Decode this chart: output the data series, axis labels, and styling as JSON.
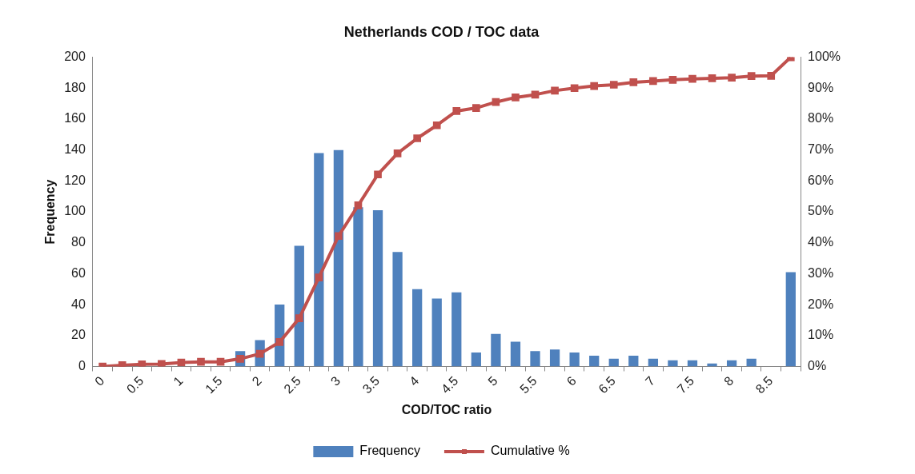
{
  "chart_data": {
    "type": "bar",
    "title": "Netherlands COD / TOC data",
    "xlabel": "COD/TOC ratio",
    "ylabel": "Frequency",
    "categories": [
      "0",
      null,
      "0.5",
      null,
      "1",
      null,
      "1.5",
      null,
      "2",
      null,
      "2.5",
      null,
      "3",
      null,
      "3.5",
      null,
      "4",
      null,
      "4.5",
      null,
      "5",
      null,
      "5.5",
      null,
      "6",
      null,
      "6.5",
      null,
      "7",
      null,
      "7.5",
      null,
      "8",
      null,
      "8.5",
      null
    ],
    "series": [
      {
        "name": "Frequency",
        "color": "#4f81bd",
        "values": [
          null,
          null,
          null,
          null,
          null,
          null,
          null,
          10,
          17,
          40,
          78,
          138,
          140,
          103,
          101,
          74,
          50,
          44,
          48,
          9,
          21,
          16,
          10,
          11,
          9,
          7,
          5,
          7,
          5,
          4,
          4,
          2,
          4,
          5,
          0,
          61
        ]
      },
      {
        "name": "Cumulative %",
        "type": "line",
        "axis": "y2",
        "color": "#c0504d",
        "values": [
          0,
          0.4,
          0.7,
          0.8,
          1.3,
          1.5,
          1.5,
          2.5,
          4.1,
          7.9,
          15.6,
          28.8,
          42.2,
          52.1,
          62.1,
          68.9,
          73.8,
          78.0,
          82.6,
          83.6,
          85.5,
          87.0,
          87.9,
          89.2,
          90.0,
          90.7,
          91.1,
          91.9,
          92.3,
          92.7,
          93.0,
          93.2,
          93.4,
          93.9,
          94.0,
          100
        ]
      }
    ],
    "ylim": [
      0,
      200
    ],
    "yticks": [
      0,
      20,
      40,
      60,
      80,
      100,
      120,
      140,
      160,
      180,
      200
    ],
    "y2lim": [
      0,
      100
    ],
    "y2ticks": [
      {
        "value": 0,
        "label": "0%"
      },
      {
        "value": 10,
        "label": "10%"
      },
      {
        "value": 20,
        "label": "20%"
      },
      {
        "value": 30,
        "label": "30%"
      },
      {
        "value": 40,
        "label": "40%"
      },
      {
        "value": 50,
        "label": "50%"
      },
      {
        "value": 60,
        "label": "60%"
      },
      {
        "value": 70,
        "label": "70%"
      },
      {
        "value": 80,
        "label": "80%"
      },
      {
        "value": 90,
        "label": "90%"
      },
      {
        "value": 100,
        "label": "100%"
      }
    ],
    "grid": false,
    "legend": "bottom",
    "marker": "square",
    "line_style": "solid"
  }
}
